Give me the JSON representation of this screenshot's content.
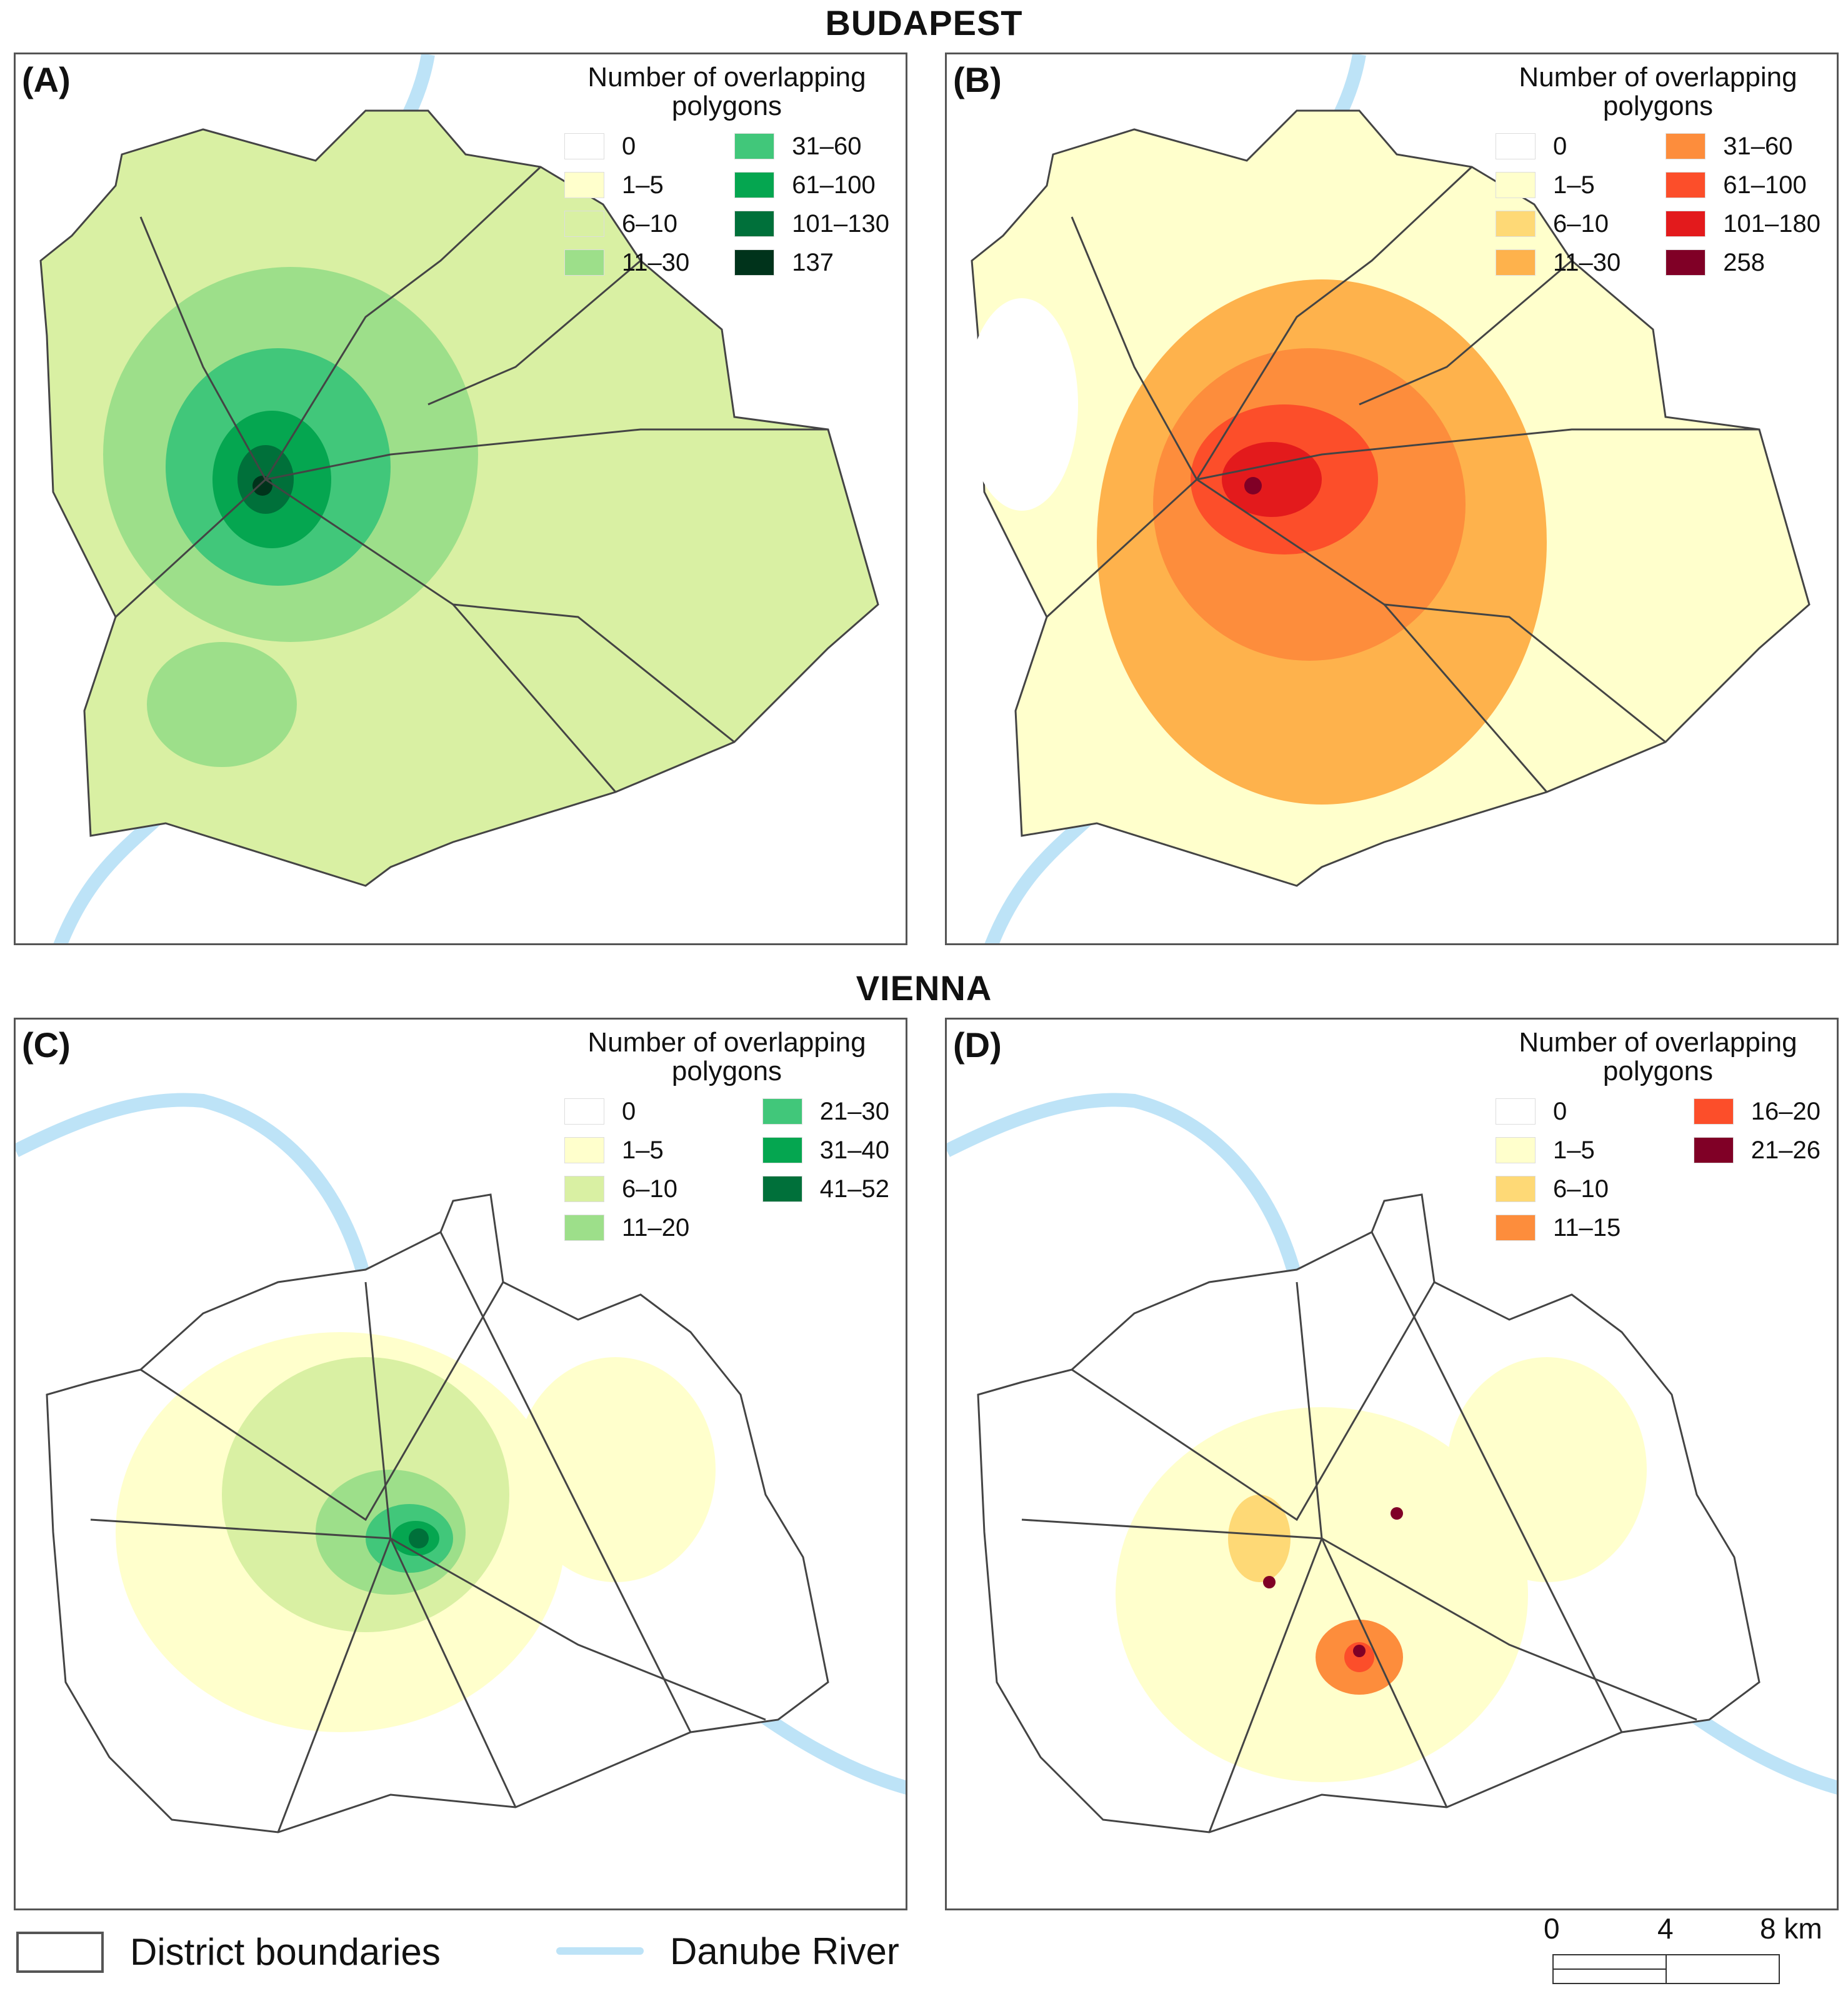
{
  "titles": {
    "top": "BUDAPEST",
    "bottom": "VIENNA"
  },
  "panels": [
    {
      "label": "(A)",
      "legend_title": "Number of overlapping polygons",
      "scheme": "green",
      "classes": [
        {
          "label": "0",
          "color": "#ffffff"
        },
        {
          "label": "1–5",
          "color": "#ffffcc"
        },
        {
          "label": "6–10",
          "color": "#d9f0a3"
        },
        {
          "label": "11–30",
          "color": "#9ddf8a"
        },
        {
          "label": "31–60",
          "color": "#41c77a"
        },
        {
          "label": "61–100",
          "color": "#05a650"
        },
        {
          "label": "101–130",
          "color": "#00703a"
        },
        {
          "label": "137",
          "color": "#00331b"
        }
      ]
    },
    {
      "label": "(B)",
      "legend_title": "Number of overlapping polygons",
      "scheme": "orange",
      "classes": [
        {
          "label": "0",
          "color": "#ffffff"
        },
        {
          "label": "1–5",
          "color": "#ffffcc"
        },
        {
          "label": "6–10",
          "color": "#fed976"
        },
        {
          "label": "11–30",
          "color": "#feb24c"
        },
        {
          "label": "31–60",
          "color": "#fd8d3c"
        },
        {
          "label": "61–100",
          "color": "#fc4e2a"
        },
        {
          "label": "101–180",
          "color": "#e31a1c"
        },
        {
          "label": "258",
          "color": "#800026"
        }
      ]
    },
    {
      "label": "(C)",
      "legend_title": "Number of overlapping polygons",
      "scheme": "green",
      "classes": [
        {
          "label": "0",
          "color": "#ffffff"
        },
        {
          "label": "1–5",
          "color": "#ffffcc"
        },
        {
          "label": "6–10",
          "color": "#d9f0a3"
        },
        {
          "label": "11–20",
          "color": "#9ddf8a"
        },
        {
          "label": "21–30",
          "color": "#41c77a"
        },
        {
          "label": "31–40",
          "color": "#05a650"
        },
        {
          "label": "41–52",
          "color": "#00703a"
        }
      ]
    },
    {
      "label": "(D)",
      "legend_title": "Number of overlapping polygons",
      "scheme": "orange",
      "classes": [
        {
          "label": "0",
          "color": "#ffffff"
        },
        {
          "label": "1–5",
          "color": "#ffffcc"
        },
        {
          "label": "6–10",
          "color": "#fed976"
        },
        {
          "label": "11–15",
          "color": "#fd8d3c"
        },
        {
          "label": "16–20",
          "color": "#fc4e2a"
        },
        {
          "label": "21–26",
          "color": "#800026"
        }
      ]
    }
  ],
  "bottom_legend": {
    "district": "District boundaries",
    "river": "Danube River",
    "river_color": "#bde3f7",
    "boundary_color": "#555555"
  },
  "scale": {
    "ticks": [
      "0",
      "4",
      "8 km"
    ]
  }
}
